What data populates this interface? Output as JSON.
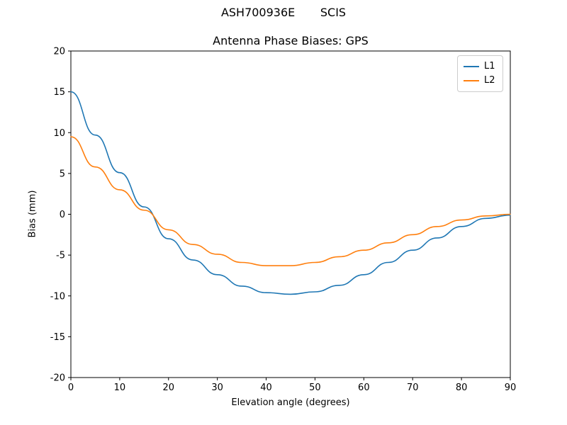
{
  "chart_data": {
    "type": "line",
    "title": "ASH700936E       SCIS",
    "subtitle": "Antenna Phase Biases: GPS",
    "xlabel": "Elevation angle (degrees)",
    "ylabel": "Bias (mm)",
    "xlim": [
      0,
      90
    ],
    "ylim": [
      -20,
      20
    ],
    "xticks": [
      0,
      10,
      20,
      30,
      40,
      50,
      60,
      70,
      80,
      90
    ],
    "yticks": [
      -20,
      -15,
      -10,
      -5,
      0,
      5,
      10,
      15,
      20
    ],
    "grid": false,
    "legend_position": "upper right",
    "x": [
      0,
      5,
      10,
      15,
      20,
      25,
      30,
      35,
      40,
      45,
      50,
      55,
      60,
      65,
      70,
      75,
      80,
      85,
      90
    ],
    "series": [
      {
        "name": "L1",
        "color": "#1f77b4",
        "values": [
          15.0,
          9.7,
          5.1,
          0.9,
          -3.0,
          -5.6,
          -7.4,
          -8.8,
          -9.6,
          -9.8,
          -9.5,
          -8.7,
          -7.4,
          -5.9,
          -4.4,
          -2.9,
          -1.5,
          -0.5,
          -0.1
        ]
      },
      {
        "name": "L2",
        "color": "#ff7f0e",
        "values": [
          9.5,
          5.8,
          3.0,
          0.5,
          -1.9,
          -3.7,
          -4.9,
          -5.9,
          -6.3,
          -6.3,
          -5.9,
          -5.2,
          -4.4,
          -3.5,
          -2.5,
          -1.5,
          -0.7,
          -0.2,
          0.0
        ]
      }
    ]
  }
}
